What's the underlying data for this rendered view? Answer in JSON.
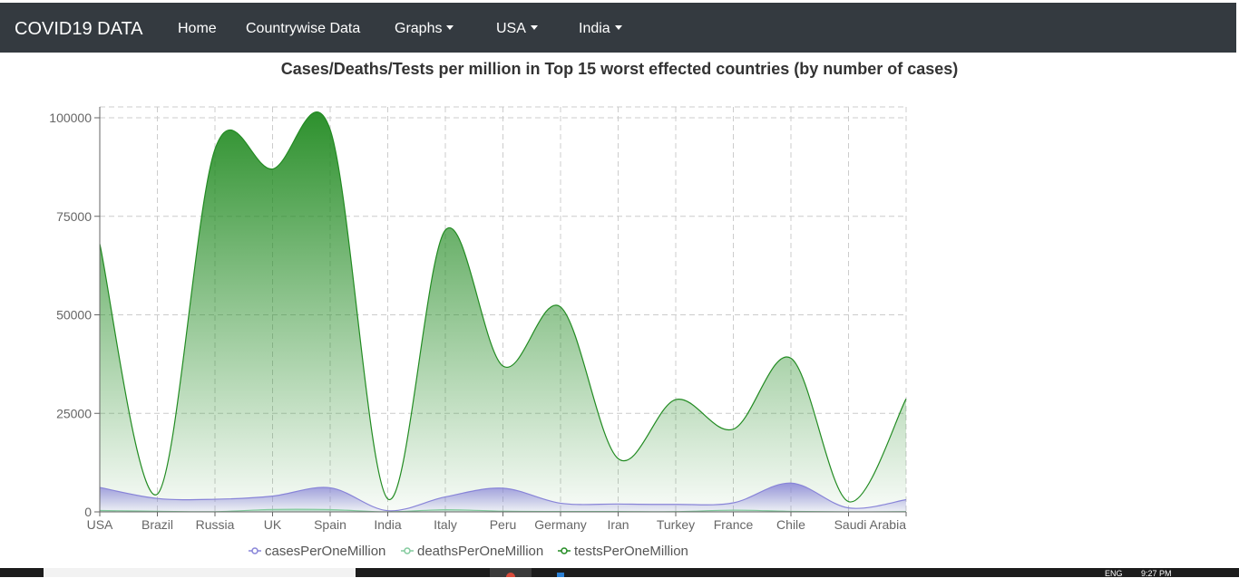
{
  "navbar": {
    "brand": "COVID19 DATA",
    "links": [
      {
        "label": "Home"
      },
      {
        "label": "Countrywise Data"
      },
      {
        "label": "Graphs"
      },
      {
        "label": "USA"
      },
      {
        "label": "India"
      }
    ]
  },
  "chart_title": "Cases/Deaths/Tests per million in Top 15 worst effected countries (by number of cases)",
  "chart_data": {
    "type": "area",
    "title": "Cases/Deaths/Tests per million in Top 15 worst effected countries (by number of cases)",
    "categories": [
      "USA",
      "Brazil",
      "Russia",
      "UK",
      "Spain",
      "India",
      "Italy",
      "Peru",
      "Germany",
      "Iran",
      "Turkey",
      "France",
      "Chile",
      "Saudi Arabia",
      ""
    ],
    "ylim": [
      0,
      100000
    ],
    "yticks": [
      0,
      25000,
      50000,
      75000,
      100000
    ],
    "grid": true,
    "legend_position": "bottom",
    "series": [
      {
        "name": "casesPerOneMillion",
        "color": "#8884d8",
        "values": [
          6200,
          3400,
          3200,
          4000,
          6100,
          300,
          3800,
          6000,
          2200,
          2000,
          1900,
          2300,
          7300,
          1000,
          3100
        ]
      },
      {
        "name": "deathsPerOneMillion",
        "color": "#82ca9d",
        "values": [
          350,
          160,
          40,
          620,
          580,
          10,
          560,
          170,
          100,
          100,
          50,
          450,
          130,
          10,
          50
        ]
      },
      {
        "name": "testsPerOneMillion",
        "color": "#228b22",
        "values": [
          68000,
          4500,
          92000,
          87000,
          97000,
          3300,
          71500,
          37000,
          52000,
          13500,
          28500,
          21000,
          39000,
          2600,
          28700
        ]
      }
    ]
  },
  "taskbar": {
    "lang": "ENG",
    "time": "9:27 PM"
  }
}
